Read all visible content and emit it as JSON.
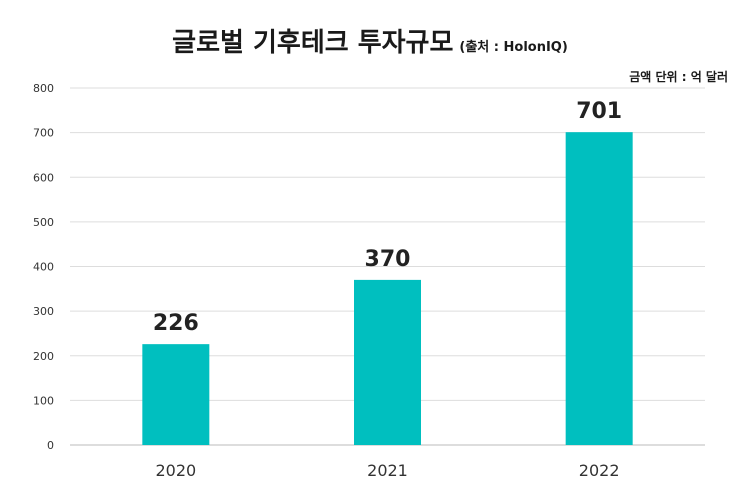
{
  "title": "글로벌 기후테크 투자규모",
  "source": "(출처 : HolonIQ)",
  "unit_label": "금액 단위 : 억 달러",
  "colors": {
    "bar": "#00BFBF",
    "grid": "#dddddd",
    "axis": "#bbbbbb"
  },
  "chart_data": {
    "type": "bar",
    "title": "글로벌 기후테크 투자규모",
    "categories": [
      "2020",
      "2021",
      "2022"
    ],
    "values": [
      226,
      370,
      701
    ],
    "data_labels": [
      "226",
      "370",
      "701"
    ],
    "yticks": [
      "0",
      "100",
      "200",
      "300",
      "400",
      "500",
      "600",
      "700",
      "800"
    ],
    "ylim": [
      0,
      800
    ],
    "xlabel": "",
    "ylabel": "",
    "grid": true,
    "legend": "none"
  }
}
